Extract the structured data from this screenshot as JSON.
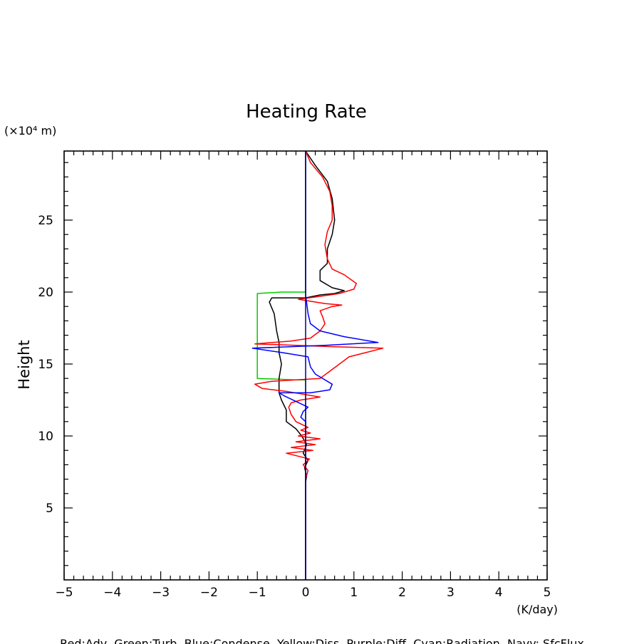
{
  "chart_data": {
    "type": "line",
    "title": "Heating Rate",
    "ylabel": "Height",
    "y_unit": "(×10⁴ m)",
    "x_unit": "(K/day)",
    "xlim": [
      -5,
      5
    ],
    "ylim": [
      0,
      29.8
    ],
    "x_ticks": [
      "−5",
      "−4",
      "−3",
      "−2",
      "−1",
      "0",
      "1",
      "2",
      "3",
      "4",
      "5"
    ],
    "x_tick_values": [
      -5,
      -4,
      -3,
      -2,
      -1,
      0,
      1,
      2,
      3,
      4,
      5
    ],
    "y_ticks": [
      "5",
      "10",
      "15",
      "20",
      "25"
    ],
    "y_tick_values": [
      5,
      10,
      15,
      20,
      25
    ],
    "grid": false,
    "legend_text": "Red:Adv  Green:Turb  Blue:Condense  Yellow:Diss  Purple:Diff  Cyan:Radiation  Navy: SfcFlux",
    "series": [
      {
        "color": "#00cc00",
        "points": [
          [
            0,
            0
          ],
          [
            0,
            13.9
          ],
          [
            -0.2,
            13.9
          ],
          [
            -1.0,
            14.0
          ],
          [
            -1.0,
            19.9
          ],
          [
            -0.5,
            20.0
          ],
          [
            0,
            20.0
          ],
          [
            0,
            29.8
          ]
        ]
      },
      {
        "color": "#000000",
        "points": [
          [
            0,
            0
          ],
          [
            0,
            6.8
          ],
          [
            0.02,
            7.2
          ],
          [
            -0.02,
            7.8
          ],
          [
            0.05,
            8.3
          ],
          [
            -0.05,
            8.8
          ],
          [
            0.02,
            9.4
          ],
          [
            -0.08,
            10.0
          ],
          [
            -0.2,
            10.5
          ],
          [
            -0.4,
            11.0
          ],
          [
            -0.4,
            11.8
          ],
          [
            -0.5,
            12.5
          ],
          [
            -0.55,
            13.0
          ],
          [
            -0.55,
            14.0
          ],
          [
            -0.5,
            15.0
          ],
          [
            -0.55,
            15.8
          ],
          [
            -0.55,
            16.5
          ],
          [
            -0.6,
            17.3
          ],
          [
            -0.65,
            18.5
          ],
          [
            -0.75,
            19.3
          ],
          [
            -0.7,
            19.6
          ],
          [
            -0.3,
            19.6
          ],
          [
            0,
            19.6
          ],
          [
            0.3,
            19.8
          ],
          [
            0.6,
            19.9
          ],
          [
            0.8,
            20.1
          ],
          [
            0.55,
            20.3
          ],
          [
            0.3,
            20.8
          ],
          [
            0.3,
            21.5
          ],
          [
            0.45,
            22.0
          ],
          [
            0.45,
            23.0
          ],
          [
            0.55,
            24.0
          ],
          [
            0.6,
            25.0
          ],
          [
            0.55,
            26.5
          ],
          [
            0.45,
            27.7
          ],
          [
            0.2,
            28.8
          ],
          [
            0,
            29.8
          ]
        ]
      },
      {
        "color": "#ff0000",
        "points": [
          [
            0,
            0
          ],
          [
            0,
            7.0
          ],
          [
            0.05,
            7.6
          ],
          [
            -0.05,
            8.0
          ],
          [
            0.08,
            8.4
          ],
          [
            -0.4,
            8.8
          ],
          [
            0.15,
            9.0
          ],
          [
            -0.3,
            9.2
          ],
          [
            0.2,
            9.4
          ],
          [
            -0.2,
            9.6
          ],
          [
            0.3,
            9.8
          ],
          [
            -0.15,
            10.0
          ],
          [
            0.1,
            10.2
          ],
          [
            -0.1,
            10.4
          ],
          [
            0.05,
            10.6
          ],
          [
            -0.2,
            11.0
          ],
          [
            -0.3,
            11.5
          ],
          [
            -0.35,
            12.0
          ],
          [
            -0.3,
            12.3
          ],
          [
            -0.1,
            12.5
          ],
          [
            0.3,
            12.7
          ],
          [
            -0.4,
            13.1
          ],
          [
            -0.9,
            13.3
          ],
          [
            -1.05,
            13.6
          ],
          [
            -0.7,
            13.8
          ],
          [
            0.3,
            14.0
          ],
          [
            0.5,
            14.5
          ],
          [
            0.7,
            15.0
          ],
          [
            0.9,
            15.5
          ],
          [
            1.6,
            16.1
          ],
          [
            0.6,
            16.2
          ],
          [
            -1.05,
            16.4
          ],
          [
            -0.3,
            16.6
          ],
          [
            0.1,
            16.8
          ],
          [
            0.3,
            17.3
          ],
          [
            0.4,
            17.8
          ],
          [
            0.35,
            18.3
          ],
          [
            0.3,
            18.7
          ],
          [
            0.55,
            19.0
          ],
          [
            0.75,
            19.1
          ],
          [
            0.4,
            19.2
          ],
          [
            -0.15,
            19.5
          ],
          [
            0.3,
            19.7
          ],
          [
            0.7,
            19.9
          ],
          [
            1.0,
            20.2
          ],
          [
            1.05,
            20.6
          ],
          [
            0.8,
            21.2
          ],
          [
            0.55,
            21.6
          ],
          [
            0.45,
            22.3
          ],
          [
            0.4,
            23.3
          ],
          [
            0.45,
            24.2
          ],
          [
            0.55,
            25.0
          ],
          [
            0.55,
            26.0
          ],
          [
            0.5,
            27.0
          ],
          [
            0.35,
            28.0
          ],
          [
            0.1,
            29.0
          ],
          [
            0,
            29.8
          ]
        ]
      },
      {
        "color": "#0000ff",
        "points": [
          [
            0,
            0
          ],
          [
            0,
            11.0
          ],
          [
            -0.1,
            11.3
          ],
          [
            -0.05,
            11.7
          ],
          [
            0.05,
            12.0
          ],
          [
            -0.45,
            12.8
          ],
          [
            -0.55,
            13.0
          ],
          [
            0.1,
            13.0
          ],
          [
            0.5,
            13.2
          ],
          [
            0.55,
            13.6
          ],
          [
            0.2,
            14.3
          ],
          [
            0.1,
            14.8
          ],
          [
            0.05,
            15.5
          ],
          [
            -0.5,
            15.8
          ],
          [
            -1.1,
            16.1
          ],
          [
            0.4,
            16.3
          ],
          [
            1.5,
            16.5
          ],
          [
            0.8,
            16.9
          ],
          [
            0.3,
            17.3
          ],
          [
            0.1,
            17.8
          ],
          [
            0.05,
            18.5
          ],
          [
            0,
            19.8
          ],
          [
            0,
            29.8
          ]
        ]
      },
      {
        "color": "#000080",
        "points": [
          [
            0,
            0
          ],
          [
            0,
            29.8
          ]
        ]
      }
    ]
  }
}
